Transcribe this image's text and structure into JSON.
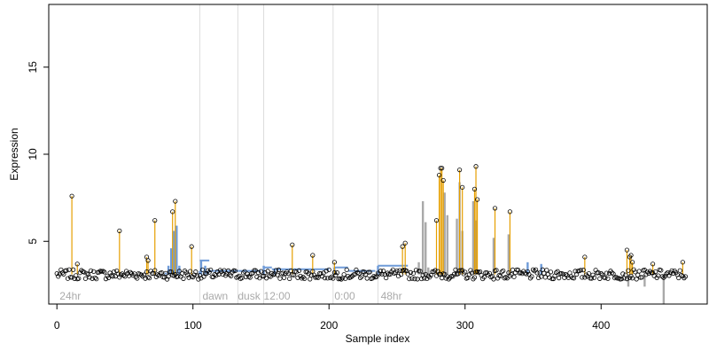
{
  "chart_data": {
    "type": "scatter",
    "xlabel": "Sample index",
    "ylabel": "Expression",
    "xlim": [
      -6,
      478
    ],
    "ylim": [
      1.4,
      18.6
    ],
    "x_ticks": [
      0,
      100,
      200,
      300,
      400
    ],
    "y_ticks": [
      5,
      10,
      15
    ],
    "grid": false,
    "segments": [
      {
        "label": "24hr",
        "x": 2
      },
      {
        "label": "dawn",
        "x": 107
      },
      {
        "label": "dusk",
        "x": 133
      },
      {
        "label": "12:00",
        "x": 152
      },
      {
        "label": "0:00",
        "x": 204
      },
      {
        "label": "48hr",
        "x": 238
      }
    ],
    "segment_boundaries": [
      105,
      133,
      152,
      203,
      236
    ],
    "colors": {
      "stem": "#E69F00",
      "step_blue": "#6F9BD8",
      "step_gray": "#A9A9A9",
      "boundary": "#DDDDDD",
      "segment_label": "#AAAAAA"
    },
    "baseline": 3.1,
    "spikes": [
      {
        "x": 11,
        "y": 7.6
      },
      {
        "x": 15,
        "y": 3.7
      },
      {
        "x": 46,
        "y": 5.6
      },
      {
        "x": 66,
        "y": 4.1
      },
      {
        "x": 67,
        "y": 3.9
      },
      {
        "x": 72,
        "y": 6.2
      },
      {
        "x": 85,
        "y": 6.7
      },
      {
        "x": 87,
        "y": 7.3
      },
      {
        "x": 99,
        "y": 4.7
      },
      {
        "x": 173,
        "y": 4.8
      },
      {
        "x": 188,
        "y": 4.2
      },
      {
        "x": 204,
        "y": 3.8
      },
      {
        "x": 254,
        "y": 4.7
      },
      {
        "x": 256,
        "y": 4.9
      },
      {
        "x": 279,
        "y": 6.2
      },
      {
        "x": 281,
        "y": 8.8
      },
      {
        "x": 282,
        "y": 9.2
      },
      {
        "x": 283,
        "y": 9.2
      },
      {
        "x": 284,
        "y": 8.5
      },
      {
        "x": 296,
        "y": 9.1
      },
      {
        "x": 298,
        "y": 8.1
      },
      {
        "x": 307,
        "y": 8.0
      },
      {
        "x": 308,
        "y": 9.3
      },
      {
        "x": 309,
        "y": 7.4
      },
      {
        "x": 322,
        "y": 6.9
      },
      {
        "x": 333,
        "y": 6.7
      },
      {
        "x": 388,
        "y": 4.1
      },
      {
        "x": 419,
        "y": 4.5
      },
      {
        "x": 421,
        "y": 4.1
      },
      {
        "x": 422,
        "y": 4.2
      },
      {
        "x": 423,
        "y": 3.8
      },
      {
        "x": 438,
        "y": 3.7
      },
      {
        "x": 460,
        "y": 3.8
      }
    ],
    "step_series": [
      {
        "x": 80,
        "y": 3.2
      },
      {
        "x": 82,
        "y": 3.6
      },
      {
        "x": 84,
        "y": 4.6
      },
      {
        "x": 86,
        "y": 5.6
      },
      {
        "x": 88,
        "y": 5.9
      },
      {
        "x": 90,
        "y": 3.6
      },
      {
        "x": 105,
        "y": 3.3
      },
      {
        "x": 106,
        "y": 3.9
      },
      {
        "x": 109,
        "y": 3.6
      },
      {
        "x": 111,
        "y": 3.3
      },
      {
        "x": 152,
        "y": 3.6
      },
      {
        "x": 160,
        "y": 3.4
      },
      {
        "x": 204,
        "y": 3.5
      },
      {
        "x": 236,
        "y": 3.6
      },
      {
        "x": 266,
        "y": 3.8
      },
      {
        "x": 269,
        "y": 7.3
      },
      {
        "x": 271,
        "y": 6.1
      },
      {
        "x": 273,
        "y": 3.5
      },
      {
        "x": 285,
        "y": 7.8
      },
      {
        "x": 287,
        "y": 6.5
      },
      {
        "x": 294,
        "y": 6.3
      },
      {
        "x": 296,
        "y": 8.4
      },
      {
        "x": 298,
        "y": 5.6
      },
      {
        "x": 306,
        "y": 7.3
      },
      {
        "x": 308,
        "y": 6.2
      },
      {
        "x": 321,
        "y": 5.2
      },
      {
        "x": 332,
        "y": 5.4
      },
      {
        "x": 346,
        "y": 3.8
      },
      {
        "x": 356,
        "y": 3.7
      },
      {
        "x": 420,
        "y": 2.4
      },
      {
        "x": 432,
        "y": 2.4
      },
      {
        "x": 446,
        "y": 1.4
      }
    ]
  }
}
